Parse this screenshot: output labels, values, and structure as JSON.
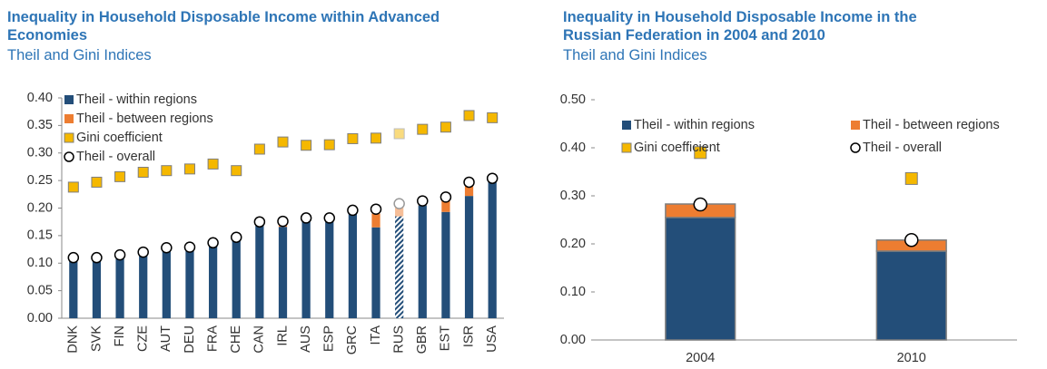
{
  "chart_data": [
    {
      "type": "bar",
      "stacked": true,
      "title": "Inequality in Household Disposable Income within Advanced Economies",
      "subtitle": "Theil and Gini Indices",
      "categories": [
        "DNK",
        "SVK",
        "FIN",
        "CZE",
        "AUT",
        "DEU",
        "FRA",
        "CHE",
        "CAN",
        "IRL",
        "AUS",
        "ESP",
        "GRC",
        "ITA",
        "RUS",
        "GBR",
        "EST",
        "ISR",
        "USA"
      ],
      "hatched_categories": [
        "RUS"
      ],
      "legend": "top-left",
      "ylim": [
        0,
        0.4
      ],
      "yticks": [
        {
          "value": 0,
          "label": "0.00"
        },
        {
          "value": 0.05,
          "label": "0.05"
        },
        {
          "value": 0.1,
          "label": "0.10"
        },
        {
          "value": 0.15,
          "label": "0.15"
        },
        {
          "value": 0.2,
          "label": "0.20"
        },
        {
          "value": 0.25,
          "label": "0.25"
        },
        {
          "value": 0.3,
          "label": "0.30"
        },
        {
          "value": 0.35,
          "label": "0.35"
        },
        {
          "value": 0.4,
          "label": "0.40"
        }
      ],
      "series": [
        {
          "name": "Theil - within regions",
          "kind": "bar",
          "color": "#234e79",
          "values": [
            0.107,
            0.106,
            0.11,
            0.115,
            0.125,
            0.125,
            0.132,
            0.143,
            0.168,
            0.166,
            0.177,
            0.175,
            0.19,
            0.165,
            0.185,
            0.205,
            0.193,
            0.222,
            0.248
          ]
        },
        {
          "name": "Theil - between regions",
          "kind": "bar",
          "color": "#ed7d31",
          "values": [
            0.003,
            0.004,
            0.005,
            0.005,
            0.003,
            0.004,
            0.005,
            0.004,
            0.007,
            0.01,
            0.005,
            0.007,
            0.006,
            0.025,
            0.023,
            0.008,
            0.022,
            0.018,
            0.005
          ]
        },
        {
          "name": "Gini coefficient",
          "kind": "square",
          "color": "#f5b800",
          "values": [
            0.238,
            0.247,
            0.257,
            0.265,
            0.268,
            0.271,
            0.28,
            0.268,
            0.307,
            0.32,
            0.314,
            0.315,
            0.326,
            0.327,
            0.335,
            0.343,
            0.347,
            0.368,
            0.364
          ]
        },
        {
          "name": "Theil - overall",
          "kind": "circle",
          "color": "#ffffff",
          "values": [
            0.11,
            0.11,
            0.115,
            0.12,
            0.128,
            0.129,
            0.137,
            0.147,
            0.175,
            0.176,
            0.182,
            0.182,
            0.196,
            0.198,
            0.208,
            0.213,
            0.22,
            0.247,
            0.254
          ]
        }
      ]
    },
    {
      "type": "bar",
      "stacked": true,
      "title": "Inequality in Household Disposable Income in the Russian Federation in 2004 and 2010",
      "subtitle": "Theil and Gini Indices",
      "categories": [
        "2004",
        "2010"
      ],
      "legend": "top",
      "ylim": [
        0,
        0.5
      ],
      "yticks": [
        {
          "value": 0,
          "label": "0.00"
        },
        {
          "value": 0.1,
          "label": "0.10"
        },
        {
          "value": 0.2,
          "label": "0.20"
        },
        {
          "value": 0.3,
          "label": "0.30"
        },
        {
          "value": 0.4,
          "label": "0.40"
        },
        {
          "value": 0.5,
          "label": "0.50"
        }
      ],
      "series": [
        {
          "name": "Theil - within regions",
          "kind": "bar",
          "color": "#234e79",
          "values": [
            0.255,
            0.185
          ]
        },
        {
          "name": "Theil - between regions",
          "kind": "bar",
          "color": "#ed7d31",
          "values": [
            0.028,
            0.023
          ]
        },
        {
          "name": "Gini coefficient",
          "kind": "square",
          "color": "#f5b800",
          "values": [
            0.39,
            0.336
          ]
        },
        {
          "name": "Theil - overall",
          "kind": "circle",
          "color": "#ffffff",
          "values": [
            0.282,
            0.208
          ]
        }
      ]
    }
  ]
}
